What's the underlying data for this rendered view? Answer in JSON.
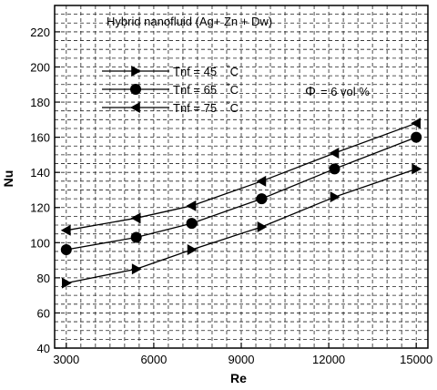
{
  "chart_data": {
    "type": "line",
    "title": "",
    "annotation": "Hybrid nanofluid (Ag+ Zn + Dw)",
    "phi_label": {
      "symbol": "Φ",
      "text": "= 6 vol %"
    },
    "xlabel": "Re",
    "ylabel": "Nu",
    "xlim": [
      2600,
      15400
    ],
    "ylim": [
      40,
      235
    ],
    "xticks": [
      3000,
      6000,
      9000,
      12000,
      15000
    ],
    "yticks": [
      40,
      60,
      80,
      100,
      120,
      140,
      160,
      180,
      200,
      220
    ],
    "grid": "dashed",
    "legend_placement": "top-left",
    "series": [
      {
        "name": "Tnf = 45",
        "unit": "°C",
        "marker": "triangle-right",
        "x": [
          3000,
          5400,
          7300,
          9700,
          12200,
          15000
        ],
        "y": [
          77,
          85,
          96,
          109,
          126,
          142
        ]
      },
      {
        "name": "Tnf = 65",
        "unit": "°C",
        "marker": "circle",
        "x": [
          3000,
          5400,
          7300,
          9700,
          12200,
          15000
        ],
        "y": [
          96,
          103,
          111,
          125,
          142,
          160
        ]
      },
      {
        "name": "Tnf = 75",
        "unit": "°C",
        "marker": "triangle-left",
        "x": [
          3000,
          5400,
          7300,
          9700,
          12200,
          15000
        ],
        "y": [
          107,
          114,
          121,
          135,
          151,
          168
        ]
      }
    ]
  }
}
